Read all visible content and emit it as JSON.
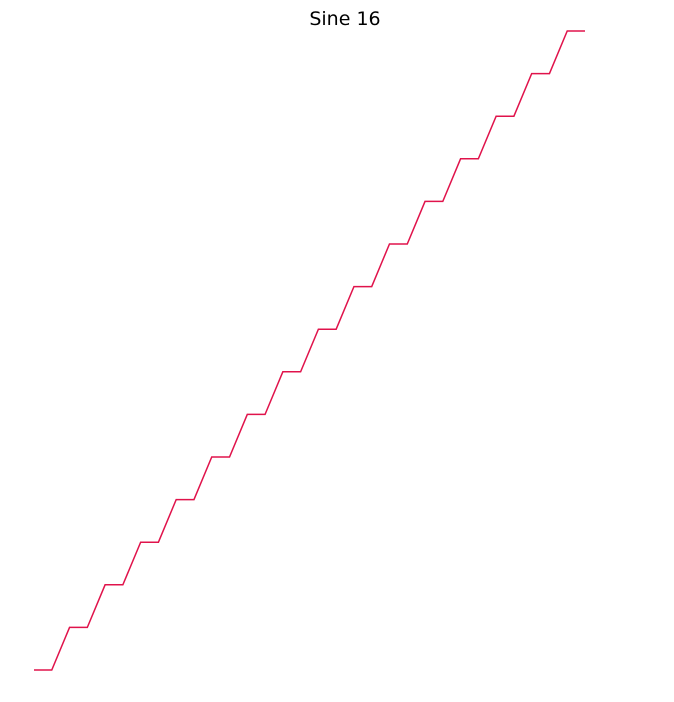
{
  "chart_data": {
    "type": "line",
    "title": "Sine 16",
    "xlabel": "",
    "ylabel": "",
    "axes_visible": false,
    "grid": false,
    "legend": "none",
    "xlim": [
      0,
      15.5
    ],
    "ylim": [
      0,
      15
    ],
    "series": [
      {
        "color": "#e0134b",
        "x": [
          0,
          0.5,
          1,
          1.5,
          2,
          2.5,
          3,
          3.5,
          4,
          4.5,
          5,
          5.5,
          6,
          6.5,
          7,
          7.5,
          8,
          8.5,
          9,
          9.5,
          10,
          10.5,
          11,
          11.5,
          12,
          12.5,
          13,
          13.5,
          14,
          14.5,
          15,
          15.5
        ],
        "y": [
          0,
          0,
          1,
          1,
          2,
          2,
          3,
          3,
          4,
          4,
          5,
          5,
          6,
          6,
          7,
          7,
          8,
          8,
          9,
          9,
          10,
          10,
          11,
          11,
          12,
          12,
          13,
          13,
          14,
          14,
          15,
          15
        ]
      }
    ]
  }
}
